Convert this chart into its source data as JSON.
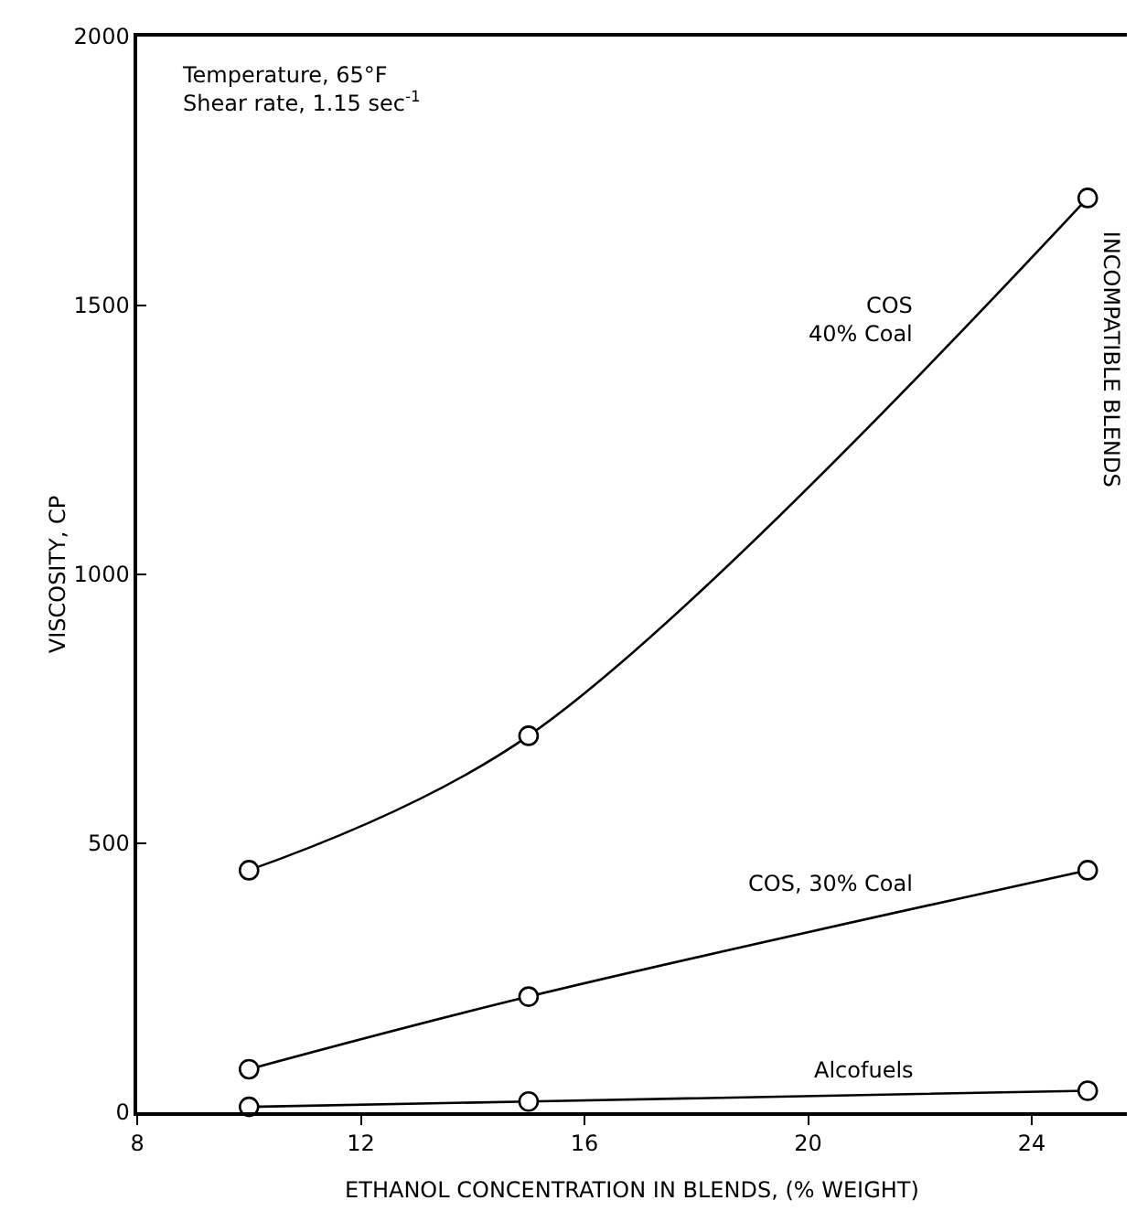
{
  "chart_data": {
    "type": "line",
    "xlabel": "ETHANOL CONCENTRATION IN BLENDS, (% WEIGHT)",
    "ylabel": "VISCOSITY, CP",
    "x": [
      10,
      15,
      25
    ],
    "series": [
      {
        "name": "COS\n40% Coal",
        "color": "#000000",
        "values": [
          450,
          700,
          1700
        ]
      },
      {
        "name": "COS, 30% Coal",
        "color": "#000000",
        "values": [
          80,
          215,
          450
        ]
      },
      {
        "name": "Alcofuels",
        "color": "#000000",
        "values": [
          10,
          20,
          40
        ]
      }
    ],
    "xlim": [
      8,
      25.7
    ],
    "xticks": [
      8,
      12,
      16,
      20,
      24
    ],
    "ylim": [
      0,
      2000
    ],
    "yticks": [
      0,
      500,
      1000,
      1500,
      2000
    ],
    "marker": "circle",
    "line_style": "solid",
    "grid": false,
    "legend": false,
    "annotations": [
      "Temperature, 65°F\nShear rate, 1.15 sec$^{-1}$",
      "INCOMPATIBLE BLENDS"
    ]
  }
}
